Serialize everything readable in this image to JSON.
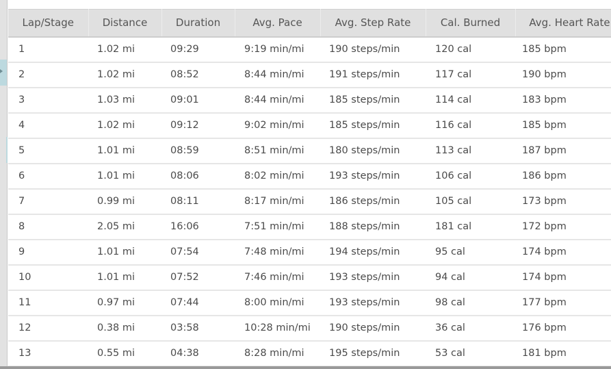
{
  "table": {
    "columns": [
      "Lap/Stage",
      "Distance",
      "Duration",
      "Avg. Pace",
      "Avg. Step Rate",
      "Cal. Burned",
      "Avg. Heart Rate"
    ],
    "rows": [
      [
        "1",
        "1.02 mi",
        "09:29",
        "9:19 min/mi",
        "190 steps/min",
        "120 cal",
        "185 bpm"
      ],
      [
        "2",
        "1.02 mi",
        "08:52",
        "8:44 min/mi",
        "191 steps/min",
        "117 cal",
        "190 bpm"
      ],
      [
        "3",
        "1.03 mi",
        "09:01",
        "8:44 min/mi",
        "185 steps/min",
        "114 cal",
        "183 bpm"
      ],
      [
        "4",
        "1.02 mi",
        "09:12",
        "9:02 min/mi",
        "185 steps/min",
        "116 cal",
        "185 bpm"
      ],
      [
        "5",
        "1.01 mi",
        "08:59",
        "8:51 min/mi",
        "180 steps/min",
        "113 cal",
        "187 bpm"
      ],
      [
        "6",
        "1.01 mi",
        "08:06",
        "8:02 min/mi",
        "193 steps/min",
        "106 cal",
        "186 bpm"
      ],
      [
        "7",
        "0.99 mi",
        "08:11",
        "8:17 min/mi",
        "186 steps/min",
        "105 cal",
        "173 bpm"
      ],
      [
        "8",
        "2.05 mi",
        "16:06",
        "7:51 min/mi",
        "188 steps/min",
        "181 cal",
        "172 bpm"
      ],
      [
        "9",
        "1.01 mi",
        "07:54",
        "7:48 min/mi",
        "194 steps/min",
        "95 cal",
        "174 bpm"
      ],
      [
        "10",
        "1.01 mi",
        "07:52",
        "7:46 min/mi",
        "193 steps/min",
        "94 cal",
        "174 bpm"
      ],
      [
        "11",
        "0.97 mi",
        "07:44",
        "8:00 min/mi",
        "193 steps/min",
        "98 cal",
        "177 bpm"
      ],
      [
        "12",
        "0.38 mi",
        "03:58",
        "10:28 min/mi",
        "190 steps/min",
        "36 cal",
        "176 bpm"
      ],
      [
        "13",
        "0.55 mi",
        "04:38",
        "8:28 min/mi",
        "195 steps/min",
        "53 cal",
        "181 bpm"
      ]
    ]
  },
  "colors": {
    "header_bg": "#e0e0e0",
    "row_divider": "#e6e6e6",
    "sidebar_bg": "#e2e2e2",
    "sidebar_highlight": "#bcd9df"
  }
}
